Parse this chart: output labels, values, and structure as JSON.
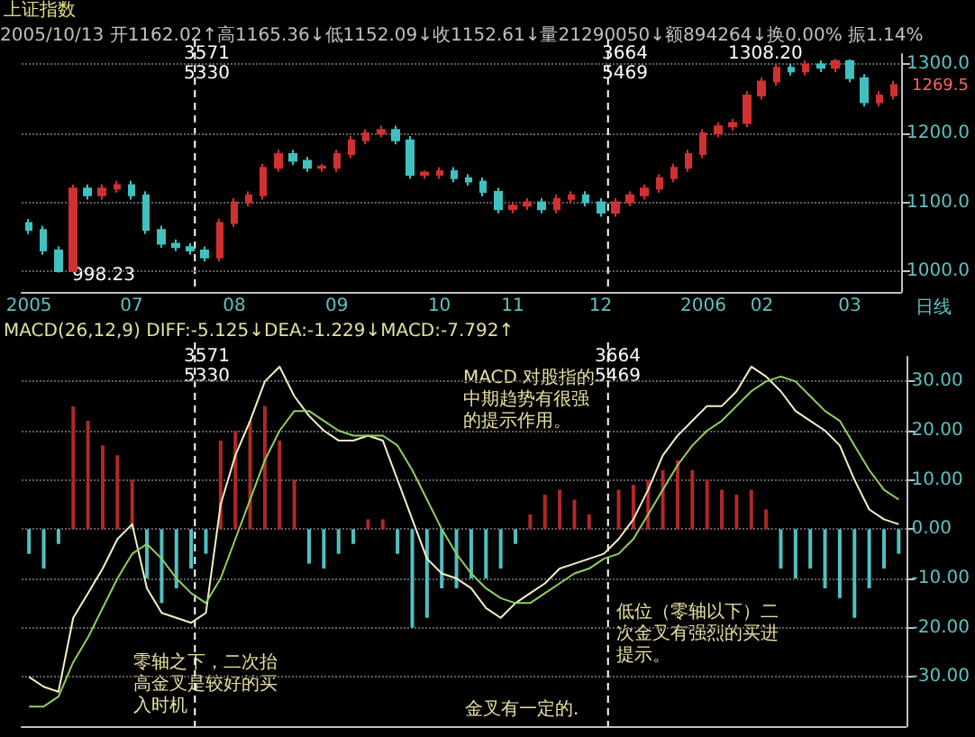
{
  "chart_data": [
    {
      "type": "candlestick",
      "title": "上证指数",
      "categories": [
        "2005",
        null,
        null,
        null,
        null,
        null,
        null,
        "07",
        null,
        null,
        null,
        null,
        null,
        null,
        "08",
        null,
        null,
        null,
        null,
        null,
        null,
        "09",
        null,
        null,
        null,
        null,
        null,
        null,
        "10",
        null,
        null,
        null,
        null,
        "11",
        null,
        null,
        null,
        null,
        null,
        "12",
        null,
        null,
        null,
        null,
        null,
        null,
        "2006",
        null,
        null,
        null,
        "02",
        null,
        null,
        null,
        null,
        null,
        "03",
        null,
        null,
        null
      ],
      "ohlc": [
        [
          1070,
          1076,
          1054,
          1060
        ],
        [
          1060,
          1066,
          1024,
          1030
        ],
        [
          1030,
          1036,
          998.23,
          1000
        ],
        [
          1000,
          1126,
          999,
          1120
        ],
        [
          1120,
          1126,
          1104,
          1110
        ],
        [
          1110,
          1126,
          1104,
          1120
        ],
        [
          1120,
          1131,
          1114,
          1125
        ],
        [
          1125,
          1131,
          1104,
          1110
        ],
        [
          1110,
          1116,
          1054,
          1060
        ],
        [
          1060,
          1066,
          1034,
          1040
        ],
        [
          1040,
          1046,
          1029,
          1035
        ],
        [
          1035,
          1041,
          1024,
          1030
        ],
        [
          1030,
          1036,
          1014,
          1020
        ],
        [
          1020,
          1076,
          1014,
          1070
        ],
        [
          1070,
          1106,
          1064,
          1100
        ],
        [
          1100,
          1116,
          1094,
          1110
        ],
        [
          1110,
          1156,
          1104,
          1150
        ],
        [
          1150,
          1176,
          1144,
          1170
        ],
        [
          1170,
          1176,
          1154,
          1160
        ],
        [
          1160,
          1166,
          1144,
          1150
        ],
        [
          1150,
          1156,
          1144,
          1152
        ],
        [
          1150,
          1176,
          1144,
          1170
        ],
        [
          1170,
          1196,
          1164,
          1190
        ],
        [
          1190,
          1206,
          1184,
          1200
        ],
        [
          1200,
          1211,
          1194,
          1205
        ],
        [
          1205,
          1211,
          1184,
          1190
        ],
        [
          1190,
          1196,
          1134,
          1140
        ],
        [
          1140,
          1146,
          1134,
          1143
        ],
        [
          1140,
          1151,
          1134,
          1145
        ],
        [
          1145,
          1151,
          1129,
          1135
        ],
        [
          1135,
          1141,
          1124,
          1130
        ],
        [
          1130,
          1136,
          1109,
          1115
        ],
        [
          1115,
          1121,
          1084,
          1090
        ],
        [
          1090,
          1101,
          1084,
          1095
        ],
        [
          1095,
          1106,
          1089,
          1100
        ],
        [
          1100,
          1106,
          1084,
          1090
        ],
        [
          1090,
          1111,
          1084,
          1105
        ],
        [
          1105,
          1116,
          1099,
          1110
        ],
        [
          1110,
          1116,
          1094,
          1100
        ],
        [
          1100,
          1106,
          1079,
          1085
        ],
        [
          1085,
          1106,
          1079,
          1100
        ],
        [
          1100,
          1116,
          1094,
          1110
        ],
        [
          1110,
          1126,
          1104,
          1120
        ],
        [
          1120,
          1141,
          1114,
          1135
        ],
        [
          1135,
          1156,
          1129,
          1150
        ],
        [
          1150,
          1176,
          1144,
          1170
        ],
        [
          1170,
          1206,
          1164,
          1200
        ],
        [
          1200,
          1216,
          1194,
          1210
        ],
        [
          1210,
          1221,
          1204,
          1215
        ],
        [
          1215,
          1261,
          1209,
          1255
        ],
        [
          1255,
          1281,
          1249,
          1275
        ],
        [
          1275,
          1301,
          1269,
          1295
        ],
        [
          1295,
          1301,
          1284,
          1290
        ],
        [
          1290,
          1306,
          1284,
          1300
        ],
        [
          1300,
          1306,
          1289,
          1295
        ],
        [
          1295,
          1308.2,
          1289,
          1305
        ],
        [
          1305,
          1307,
          1274,
          1280
        ],
        [
          1280,
          1286,
          1239,
          1245
        ],
        [
          1245,
          1261,
          1239,
          1255
        ],
        [
          1255,
          1276,
          1249,
          1270
        ]
      ],
      "colors": [
        "#40c0c0",
        "#40c0c0",
        "#40c0c0",
        "#d03030",
        "#40c0c0",
        "#d03030",
        "#d03030",
        "#40c0c0",
        "#40c0c0",
        "#40c0c0",
        "#40c0c0",
        "#40c0c0",
        "#40c0c0",
        "#d03030",
        "#d03030",
        "#d03030",
        "#d03030",
        "#d03030",
        "#40c0c0",
        "#40c0c0",
        "#d03030",
        "#d03030",
        "#d03030",
        "#d03030",
        "#d03030",
        "#40c0c0",
        "#40c0c0",
        "#d03030",
        "#d03030",
        "#40c0c0",
        "#40c0c0",
        "#40c0c0",
        "#40c0c0",
        "#d03030",
        "#d03030",
        "#40c0c0",
        "#d03030",
        "#d03030",
        "#40c0c0",
        "#40c0c0",
        "#d03030",
        "#d03030",
        "#d03030",
        "#d03030",
        "#d03030",
        "#d03030",
        "#d03030",
        "#d03030",
        "#d03030",
        "#d03030",
        "#d03030",
        "#d03030",
        "#40c0c0",
        "#d03030",
        "#40c0c0",
        "#d03030",
        "#40c0c0",
        "#40c0c0",
        "#d03030",
        "#d03030"
      ],
      "ylim": [
        970,
        1315
      ],
      "yticks": [
        {
          "value": 1000,
          "label": "1000.0"
        },
        {
          "value": 1100,
          "label": "1100.0"
        },
        {
          "value": 1200,
          "label": "1200.0"
        },
        {
          "value": 1300,
          "label": "1300.0"
        }
      ],
      "grid": "y",
      "annotations": [
        "2005/10/13 开1162.02↑高1165.36↓低1152.09↓收1152.61↓量21290050↓额894264↓换0.00% 振1.14%",
        "998.23",
        "1308.20",
        "1269.5",
        "日线",
        "3571",
        "5330",
        "3664",
        "5469"
      ]
    },
    {
      "type": "bar",
      "title": "MACD(26,12,9) DIFF:-5.125↓DEA:-1.229↓MACD:-7.792↑",
      "categories": [
        "2005",
        null,
        null,
        null,
        null,
        null,
        null,
        "07",
        null,
        null,
        null,
        null,
        null,
        null,
        "08",
        null,
        null,
        null,
        null,
        null,
        null,
        "09",
        null,
        null,
        null,
        null,
        null,
        null,
        "10",
        null,
        null,
        null,
        null,
        "11",
        null,
        null,
        null,
        null,
        null,
        "12",
        null,
        null,
        null,
        null,
        null,
        null,
        "2006",
        null,
        null,
        null,
        "02",
        null,
        null,
        null,
        null,
        null,
        "03",
        null,
        null,
        null
      ],
      "series": [
        {
          "type": "bar",
          "values": [
            -5,
            -8,
            -3,
            25,
            22,
            17,
            15,
            10,
            -10,
            -15,
            -12,
            -8,
            -5,
            18,
            20,
            22,
            25,
            18,
            10,
            -7,
            -8,
            -5,
            -3,
            2,
            2,
            -5,
            -20,
            -18,
            -12,
            -12,
            -10,
            -10,
            -8,
            -3,
            3,
            7,
            8,
            6,
            3,
            0,
            8,
            9,
            10,
            12,
            14,
            12,
            10,
            8,
            7,
            8,
            4,
            -8,
            -10,
            -8,
            -12,
            -14,
            -18,
            -12,
            -8,
            -5
          ],
          "colors": [
            "#50c0c0",
            "#50c0c0",
            "#50c0c0",
            "#b02828",
            "#b02828",
            "#b02828",
            "#b02828",
            "#b02828",
            "#50c0c0",
            "#50c0c0",
            "#50c0c0",
            "#50c0c0",
            "#50c0c0",
            "#b02828",
            "#b02828",
            "#b02828",
            "#b02828",
            "#b02828",
            "#b02828",
            "#50c0c0",
            "#50c0c0",
            "#50c0c0",
            "#50c0c0",
            "#b02828",
            "#b02828",
            "#50c0c0",
            "#50c0c0",
            "#50c0c0",
            "#50c0c0",
            "#50c0c0",
            "#50c0c0",
            "#50c0c0",
            "#50c0c0",
            "#50c0c0",
            "#b02828",
            "#b02828",
            "#b02828",
            "#b02828",
            "#b02828",
            "#b02828",
            "#b02828",
            "#b02828",
            "#b02828",
            "#b02828",
            "#b02828",
            "#b02828",
            "#b02828",
            "#b02828",
            "#b02828",
            "#b02828",
            "#b02828",
            "#50c0c0",
            "#50c0c0",
            "#50c0c0",
            "#50c0c0",
            "#50c0c0",
            "#50c0c0",
            "#50c0c0",
            "#50c0c0",
            "#50c0c0"
          ]
        },
        {
          "type": "line",
          "color": "#f0f0c8",
          "values": [
            -30,
            -32,
            -33,
            -18,
            -13,
            -8,
            -2,
            1,
            -12,
            -17,
            -18,
            -19,
            -17,
            5,
            15,
            22,
            30,
            33,
            27,
            23,
            20,
            18,
            18,
            19,
            18,
            10,
            2,
            -6,
            -9,
            -10,
            -12,
            -16,
            -18,
            -15,
            -13,
            -11,
            -8,
            -7,
            -6,
            -5,
            -2,
            2,
            8,
            15,
            19,
            22,
            25,
            25,
            28,
            33,
            31,
            28,
            24,
            22,
            20,
            17,
            10,
            4,
            2,
            1
          ]
        },
        {
          "type": "line",
          "color": "#90d060",
          "values": [
            -36,
            -36,
            -34,
            -27,
            -22,
            -16,
            -10,
            -5,
            -3,
            -6,
            -10,
            -13,
            -15,
            -10,
            -2,
            6,
            14,
            20,
            24,
            24,
            22,
            20,
            19,
            19,
            19,
            17,
            12,
            6,
            0,
            -5,
            -9,
            -12,
            -14,
            -15,
            -15,
            -13,
            -11,
            -9,
            -8,
            -6,
            -5,
            -2,
            3,
            8,
            13,
            17,
            20,
            22,
            25,
            28,
            30,
            31,
            30,
            27,
            24,
            22,
            17,
            12,
            8,
            6
          ]
        }
      ],
      "ylim": [
        -40,
        35
      ],
      "yticks": [
        {
          "value": -30,
          "label": "-30.00"
        },
        {
          "value": -20,
          "label": "-20.00"
        },
        {
          "value": -10,
          "label": "-10.00"
        },
        {
          "value": 0,
          "label": "0.00"
        },
        {
          "value": 10,
          "label": "10.00"
        },
        {
          "value": 20,
          "label": "20.00"
        },
        {
          "value": 30,
          "label": "30.00"
        }
      ],
      "grid": "y",
      "tick_labels": "y",
      "line_style": "solid",
      "annotations": [
        "MACD 对股指的中期趋势有很强的提示作用。",
        "零轴之下，二次抬高金叉是较好的买入时机",
        "金叉有一定的.",
        "低位（零轴以下）二次金叉有强烈的买进提示。",
        "3571",
        "5330",
        "3664",
        "5469"
      ]
    }
  ]
}
